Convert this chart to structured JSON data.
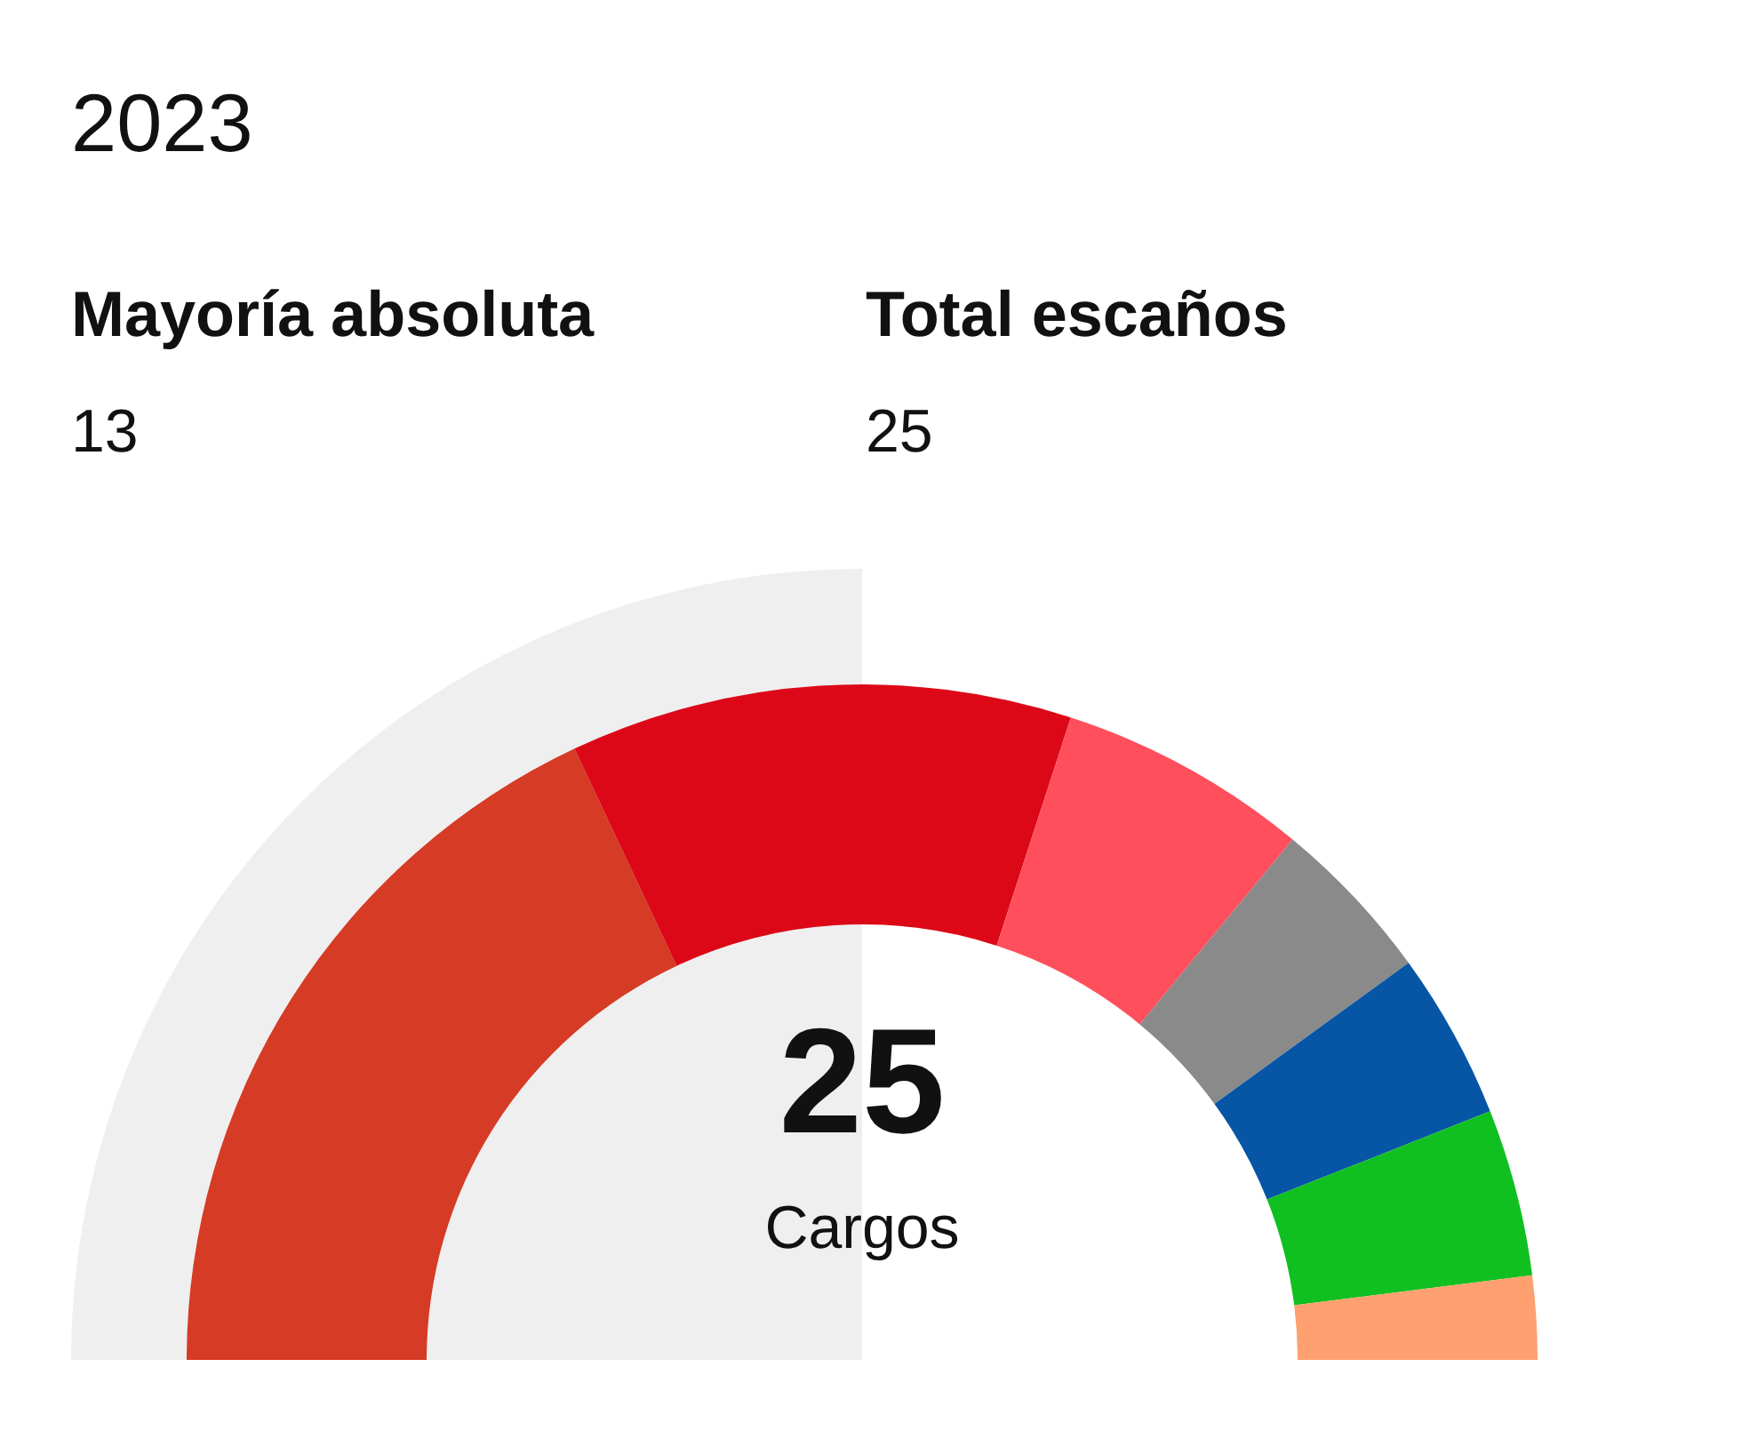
{
  "chart_data": {
    "type": "donut",
    "title": "2023",
    "categories": [
      null,
      null,
      null,
      null,
      null,
      null,
      null
    ],
    "values": [
      36,
      24,
      12,
      8,
      8,
      8,
      4
    ],
    "colors": [
      "#d63b25",
      "#dc0818",
      "#ff4f5c",
      "#8a8a8a",
      "#0756a5",
      "#10c020",
      "#ffa070"
    ],
    "annotations": [
      "Mayoría absoluta",
      "13",
      "Total escaños",
      "25",
      "25",
      "Cargos"
    ]
  }
}
